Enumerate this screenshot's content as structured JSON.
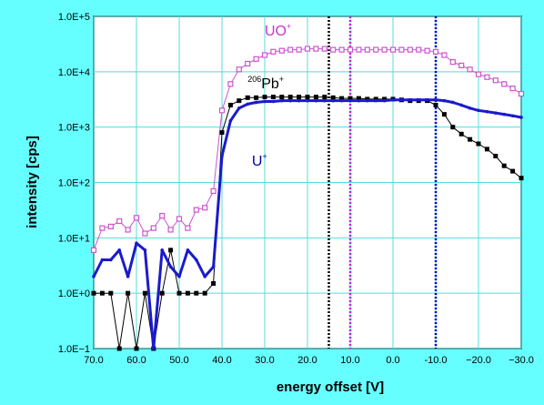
{
  "chart_data": {
    "type": "line",
    "title": "",
    "xlabel": "energy offset [V]",
    "ylabel": "intensity [cps]",
    "xlim": [
      70,
      -30
    ],
    "ylim": [
      0.1,
      100000
    ],
    "yscale": "log",
    "grid": true,
    "x_ticks": [
      70,
      60,
      50,
      40,
      30,
      20,
      10,
      0,
      -10,
      -20,
      -30
    ],
    "x_tick_labels": [
      "70.0",
      "60.0",
      "50.0",
      "40.0",
      "30.0",
      "20.0",
      "10.0",
      "0.0",
      "-10.0",
      "−20.0",
      "−30.0"
    ],
    "y_ticks": [
      0.1,
      1,
      10,
      100,
      1000,
      10000,
      100000
    ],
    "y_tick_labels": [
      "1.0E−1",
      "1.0E+0",
      "1.0E+1",
      "1.0E+2",
      "1.0E+3",
      "1.0E+4",
      "1.0E+5"
    ],
    "vertical_lines": [
      {
        "x": 15,
        "color": "#000000"
      },
      {
        "x": 10,
        "color": "#d020d0"
      },
      {
        "x": -10,
        "color": "#0000cc"
      }
    ],
    "annotations": [
      {
        "base": "UO",
        "sup": "+",
        "prefix_sup": "",
        "color": "#cc33cc",
        "x": 30,
        "y": 45000
      },
      {
        "base": "Pb",
        "sup": "+",
        "prefix_sup": "206",
        "color": "#000000",
        "x": 34,
        "y": 5000
      },
      {
        "base": "U",
        "sup": "+",
        "prefix_sup": "",
        "color": "#000099",
        "x": 33,
        "y": 200
      }
    ],
    "series": [
      {
        "color": "#cc55cc",
        "marker": "open-square",
        "line_width": 1,
        "x": [
          70,
          68,
          66,
          64,
          62,
          60,
          58,
          56,
          54,
          52,
          50,
          48,
          46,
          44,
          42,
          40,
          38,
          36,
          34,
          32,
          30,
          28,
          26,
          24,
          22,
          20,
          18,
          16,
          14,
          12,
          10,
          8,
          6,
          4,
          2,
          0,
          -2,
          -4,
          -6,
          -8,
          -10,
          -12,
          -14,
          -16,
          -18,
          -20,
          -22,
          -24,
          -26,
          -28,
          -30
        ],
        "y": [
          6,
          15,
          16,
          20,
          14,
          23,
          12,
          15,
          25,
          14,
          22,
          15,
          32,
          35,
          70,
          2000,
          6000,
          11000,
          14000,
          17000,
          20000,
          23000,
          24000,
          25000,
          25000,
          26000,
          26000,
          26000,
          25000,
          25000,
          25000,
          25000,
          25000,
          25000,
          25000,
          25000,
          25000,
          25000,
          25000,
          24000,
          23000,
          20000,
          15000,
          13000,
          11000,
          9000,
          8000,
          7000,
          6000,
          5000,
          4000
        ]
      },
      {
        "color": "#000000",
        "marker": "filled-square",
        "line_width": 1,
        "x": [
          70,
          68,
          66,
          64,
          62,
          60,
          58,
          56,
          54,
          52,
          50,
          48,
          46,
          44,
          42,
          40,
          38,
          36,
          34,
          32,
          30,
          28,
          26,
          24,
          22,
          20,
          18,
          16,
          14,
          12,
          10,
          8,
          6,
          4,
          2,
          0,
          -2,
          -4,
          -6,
          -8,
          -10,
          -12,
          -14,
          -16,
          -18,
          -20,
          -22,
          -24,
          -26,
          -28,
          -30
        ],
        "y": [
          1,
          1,
          1,
          0.1,
          1,
          0.1,
          1,
          0.1,
          1,
          6,
          1,
          1,
          1,
          1,
          1.5,
          800,
          2500,
          3000,
          3400,
          3400,
          3500,
          3500,
          3500,
          3500,
          3500,
          3500,
          3500,
          3500,
          3400,
          3300,
          3300,
          3300,
          3200,
          3200,
          3200,
          3200,
          3100,
          3000,
          3000,
          3000,
          2500,
          1700,
          1000,
          750,
          600,
          500,
          400,
          300,
          200,
          160,
          120
        ]
      },
      {
        "color": "#1a1acc",
        "marker": "small-dot",
        "line_width": 3,
        "x": [
          70,
          68,
          66,
          64,
          62,
          60,
          58,
          56,
          54,
          52,
          50,
          48,
          46,
          44,
          42,
          40,
          38,
          36,
          34,
          32,
          30,
          28,
          26,
          24,
          22,
          20,
          18,
          16,
          14,
          12,
          10,
          8,
          6,
          4,
          2,
          0,
          -2,
          -4,
          -6,
          -8,
          -10,
          -12,
          -14,
          -16,
          -18,
          -20,
          -22,
          -24,
          -26,
          -28,
          -30
        ],
        "y": [
          2,
          4,
          4,
          6,
          2,
          8,
          6,
          0.1,
          6,
          3,
          2,
          6,
          4,
          2,
          3,
          300,
          1300,
          2200,
          2600,
          2800,
          2900,
          2900,
          3000,
          3000,
          3000,
          3000,
          3000,
          3000,
          3000,
          3000,
          3000,
          3000,
          3000,
          3000,
          3000,
          3100,
          3100,
          3100,
          3100,
          3100,
          3100,
          3000,
          2800,
          2500,
          2200,
          2000,
          1900,
          1800,
          1700,
          1600,
          1500
        ]
      }
    ]
  }
}
